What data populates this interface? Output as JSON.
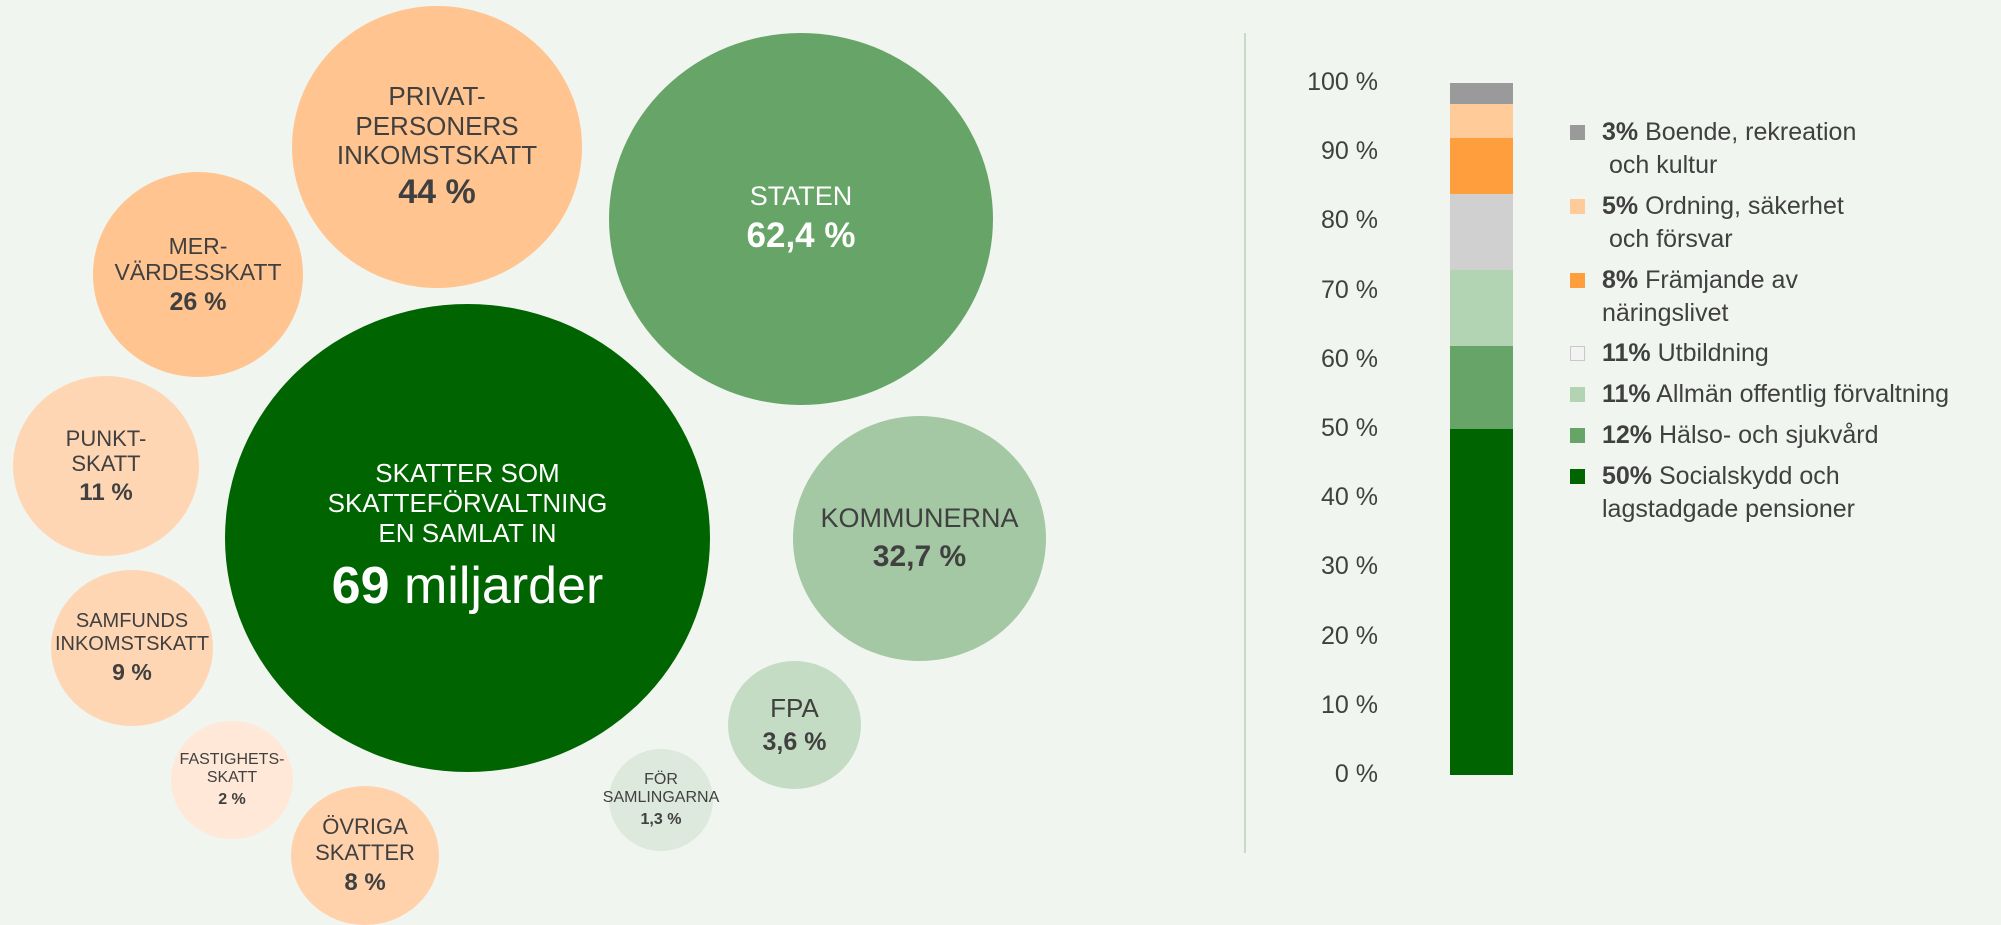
{
  "bubbles": {
    "total": {
      "label": "SKATTER SOM\nSKATTEFÖRVALTNING\nEN SAMLAT IN",
      "value_number": "69",
      "value_unit": "miljarder",
      "color": "#006400"
    },
    "privat": {
      "label": "PRIVAT-\nPERSONERS\nINKOMSTSKATT",
      "value": "44 %",
      "color": "#ffc48f"
    },
    "moms": {
      "label": "MER-\nVÄRDESSKATT",
      "value": "26 %",
      "color": "#ffc48f"
    },
    "punkt": {
      "label": "PUNKT-\nSKATT",
      "value": "11 %",
      "color": "#ffd6b3"
    },
    "samfund": {
      "label": "SAMFUNDS\nINKOMSTSKATT",
      "value": "9 %",
      "color": "#ffd6b3"
    },
    "fastighet": {
      "label": "FASTIGHETS-\nSKATT",
      "value": "2 %",
      "color": "#ffe8d7"
    },
    "ovriga": {
      "label": "ÖVRIGA\nSKATTER",
      "value": "8 %",
      "color": "#ffd2ab"
    },
    "staten": {
      "label": "STATEN",
      "value": "62,4 %",
      "color": "#67a467"
    },
    "kommunerna": {
      "label": "KOMMUNERNA",
      "value": "32,7 %",
      "color": "#a3c8a3"
    },
    "fpa": {
      "label": "FPA",
      "value": "3,6 %",
      "color": "#c5dcc4"
    },
    "forsamlingarna": {
      "label": "FÖR\nSAMLINGARNA",
      "value": "1,3 %",
      "color": "#dde9dc"
    }
  },
  "chart_data": {
    "type": "bar",
    "stacked": true,
    "categories": [
      ""
    ],
    "ylim": [
      0,
      100
    ],
    "yticks": [
      "0 %",
      "10 %",
      "20 %",
      "30 %",
      "40 %",
      "50 %",
      "60 %",
      "70 %",
      "80 %",
      "90 %",
      "100 %"
    ],
    "series": [
      {
        "pct": "50%",
        "name": "Socialskydd och\nlagstadgade pensioner",
        "value": 50,
        "color": "#006400"
      },
      {
        "pct": "12%",
        "name": "Hälso- och sjukvård",
        "value": 12,
        "color": "#67a467"
      },
      {
        "pct": "11%",
        "name": "Allmän offentlig förvaltning",
        "value": 11,
        "color": "#b3d4b3"
      },
      {
        "pct": "11%",
        "name": "Utbildning",
        "value": 11,
        "color": "#d0d0d0"
      },
      {
        "pct": "8%",
        "name": "Främjande av\nnäringslivet",
        "value": 8,
        "color": "#ff9e3d"
      },
      {
        "pct": "5%",
        "name": "Ordning, säkerhet\n och försvar",
        "value": 5,
        "color": "#ffcc99"
      },
      {
        "pct": "3%",
        "name": "Boende, rekreation\n och kultur",
        "value": 3,
        "color": "#9a9a9a"
      }
    ],
    "legend_position": "right"
  }
}
